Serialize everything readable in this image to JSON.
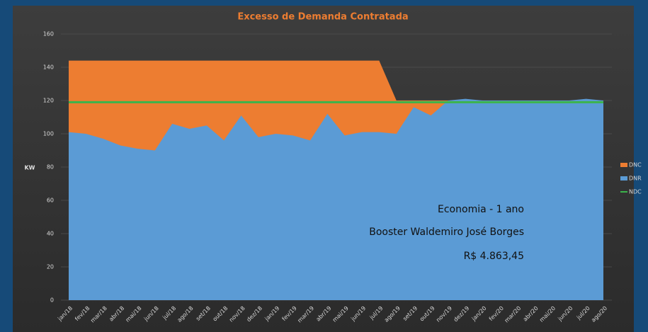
{
  "chart_data": {
    "type": "area",
    "title": "Excesso de Demanda Contratada",
    "ylabel": "KW",
    "categories": [
      "jan/18",
      "fev/18",
      "mar/18",
      "abr/18",
      "mai/18",
      "jun/18",
      "jul/18",
      "ago/18",
      "set/18",
      "out/18",
      "nov/18",
      "dez/18",
      "jan/19",
      "fev/19",
      "mar/19",
      "abr/19",
      "mai/19",
      "jun/19",
      "jul/19",
      "ago/19",
      "set/19",
      "out/19",
      "nov/19",
      "dez/19",
      "jan/20",
      "fev/20",
      "mar/20",
      "abr/20",
      "mai/20",
      "jun/20",
      "jul/20",
      "ago/20"
    ],
    "series": [
      {
        "name": "DNC",
        "color": "#ed7d31",
        "kind": "area",
        "values": [
          144,
          144,
          144,
          144,
          144,
          144,
          144,
          144,
          144,
          144,
          144,
          144,
          144,
          144,
          144,
          144,
          144,
          144,
          144,
          120,
          120,
          120,
          120,
          120,
          120,
          120,
          120,
          120,
          120,
          120,
          120,
          120
        ]
      },
      {
        "name": "DNR",
        "color": "#5b9bd5",
        "kind": "area",
        "values": [
          101,
          100,
          97,
          93,
          91,
          90,
          106,
          103,
          105,
          96,
          111,
          98,
          100,
          99,
          96,
          112,
          99,
          101,
          101,
          100,
          116,
          111,
          120,
          121,
          120,
          120,
          120,
          120,
          120,
          120,
          121,
          120
        ]
      },
      {
        "name": "NDC",
        "color": "#3cb44b",
        "kind": "line",
        "values": [
          119,
          119,
          119,
          119,
          119,
          119,
          119,
          119,
          119,
          119,
          119,
          119,
          119,
          119,
          119,
          119,
          119,
          119,
          119,
          119,
          119,
          119,
          119,
          119,
          119,
          119,
          119,
          119,
          119,
          119,
          119,
          119
        ]
      }
    ],
    "ylim": [
      0,
      160
    ],
    "yticks": [
      0,
      20,
      40,
      60,
      80,
      100,
      120,
      140,
      160
    ],
    "grid": true,
    "legend": "right",
    "annotations": [
      "Economia - 1 ano",
      "Booster Waldemiro José Borges",
      "R$ 4.863,45"
    ]
  }
}
